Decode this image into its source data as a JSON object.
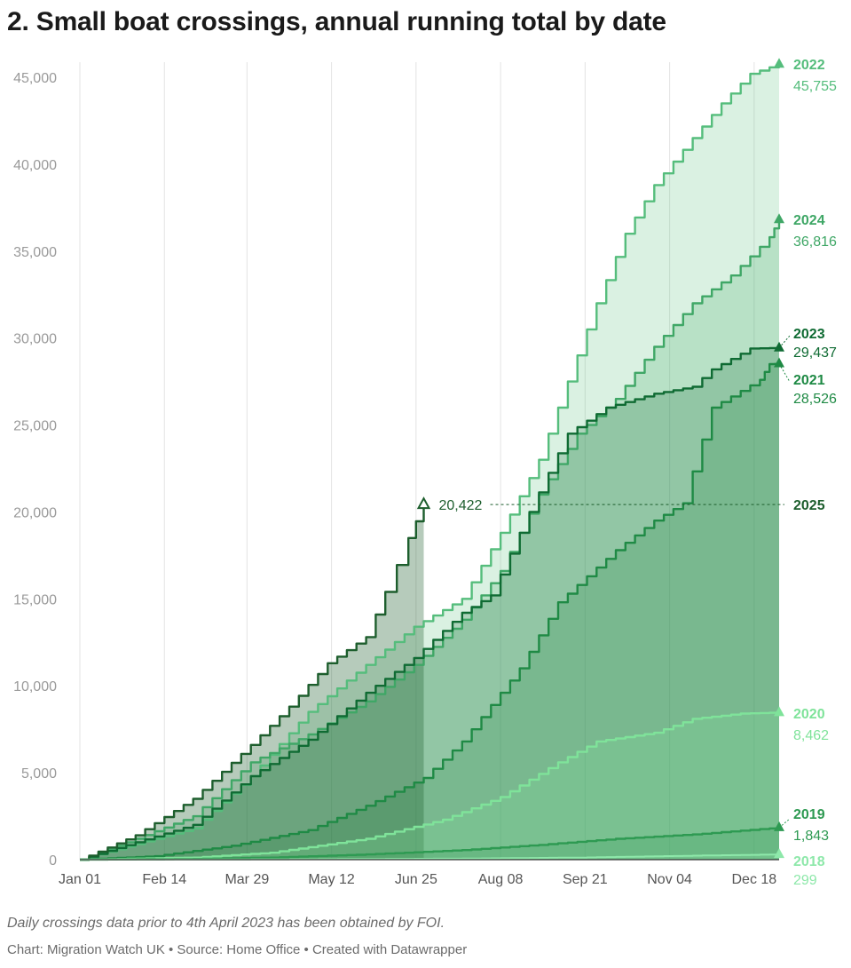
{
  "title": "2. Small boat crossings, annual running total by date",
  "footer": {
    "note": "Daily crossings data prior to 4th April 2023 has been obtained by FOI.",
    "source": "Chart: Migration Watch UK • Source: Home Office • Created with Datawrapper"
  },
  "colors": {
    "y2018": "#8ee8aa",
    "y2019": "#2e9a52",
    "y2020": "#7fe39a",
    "y2021": "#1f8a45",
    "y2022": "#55bd7c",
    "y2023": "#0f6b33",
    "y2024": "#3fa766",
    "y2025": "#1d5e2d"
  },
  "chart_data": {
    "type": "area",
    "title": "2. Small boat crossings, annual running total by date",
    "xlabel": "",
    "ylabel": "",
    "xlim": [
      1,
      365
    ],
    "ylim": [
      0,
      45000
    ],
    "grid": true,
    "x_ticks": [
      {
        "day": 1,
        "label": "Jan 01"
      },
      {
        "day": 45,
        "label": "Feb 14"
      },
      {
        "day": 88,
        "label": "Mar 29"
      },
      {
        "day": 132,
        "label": "May 12"
      },
      {
        "day": 176,
        "label": "Jun 25"
      },
      {
        "day": 220,
        "label": "Aug 08"
      },
      {
        "day": 264,
        "label": "Sep 21"
      },
      {
        "day": 308,
        "label": "Nov 04"
      },
      {
        "day": 352,
        "label": "Dec 18"
      }
    ],
    "y_ticks": [
      {
        "value": 0,
        "label": "0"
      },
      {
        "value": 5000,
        "label": "5,000"
      },
      {
        "value": 10000,
        "label": "10,000"
      },
      {
        "value": 15000,
        "label": "15,000"
      },
      {
        "value": 20000,
        "label": "20,000"
      },
      {
        "value": 25000,
        "label": "25,000"
      },
      {
        "value": 30000,
        "label": "30,000"
      },
      {
        "value": 35000,
        "label": "35,000"
      },
      {
        "value": 40000,
        "label": "40,000"
      },
      {
        "value": 45000,
        "label": "45,000"
      }
    ],
    "series": [
      {
        "name": "2018",
        "final": 299,
        "final_label": "299",
        "color_key": "y2018",
        "points": [
          [
            1,
            0
          ],
          [
            100,
            20
          ],
          [
            200,
            60
          ],
          [
            260,
            120
          ],
          [
            320,
            230
          ],
          [
            365,
            299
          ]
        ]
      },
      {
        "name": "2019",
        "final": 1843,
        "final_label": "1,843",
        "color_key": "y2019",
        "points": [
          [
            1,
            0
          ],
          [
            60,
            40
          ],
          [
            100,
            120
          ],
          [
            150,
            300
          ],
          [
            200,
            550
          ],
          [
            240,
            850
          ],
          [
            280,
            1200
          ],
          [
            320,
            1450
          ],
          [
            365,
            1843
          ]
        ]
      },
      {
        "name": "2020",
        "final": 8462,
        "final_label": "8,462",
        "color_key": "y2020",
        "points": [
          [
            1,
            0
          ],
          [
            60,
            120
          ],
          [
            100,
            400
          ],
          [
            150,
            1200
          ],
          [
            190,
            2300
          ],
          [
            220,
            3600
          ],
          [
            250,
            5600
          ],
          [
            270,
            6800
          ],
          [
            300,
            7300
          ],
          [
            320,
            8100
          ],
          [
            345,
            8400
          ],
          [
            365,
            8462
          ]
        ]
      },
      {
        "name": "2021",
        "final": 28526,
        "final_label": "28,526",
        "color_key": "y2021",
        "points": [
          [
            1,
            0
          ],
          [
            40,
            200
          ],
          [
            80,
            800
          ],
          [
            120,
            1700
          ],
          [
            150,
            3100
          ],
          [
            180,
            4700
          ],
          [
            200,
            6800
          ],
          [
            230,
            11000
          ],
          [
            250,
            14800
          ],
          [
            280,
            17800
          ],
          [
            300,
            19500
          ],
          [
            315,
            20500
          ],
          [
            330,
            26000
          ],
          [
            355,
            27600
          ],
          [
            360,
            28500
          ],
          [
            365,
            28526
          ]
        ]
      },
      {
        "name": "2022",
        "final": 45755,
        "final_label": "45,755",
        "color_key": "y2022",
        "points": [
          [
            1,
            0
          ],
          [
            30,
            900
          ],
          [
            60,
            1800
          ],
          [
            90,
            4800
          ],
          [
            120,
            8500
          ],
          [
            150,
            11200
          ],
          [
            175,
            13400
          ],
          [
            200,
            15000
          ],
          [
            220,
            18800
          ],
          [
            240,
            23000
          ],
          [
            255,
            27500
          ],
          [
            270,
            32000
          ],
          [
            285,
            36000
          ],
          [
            300,
            38800
          ],
          [
            320,
            41500
          ],
          [
            335,
            43500
          ],
          [
            350,
            45200
          ],
          [
            365,
            45755
          ]
        ]
      },
      {
        "name": "2023",
        "final": 29437,
        "final_label": "29,437",
        "color_key": "y2023",
        "points": [
          [
            1,
            0
          ],
          [
            30,
            1000
          ],
          [
            60,
            2000
          ],
          [
            90,
            4800
          ],
          [
            120,
            6900
          ],
          [
            150,
            9600
          ],
          [
            175,
            11600
          ],
          [
            200,
            14200
          ],
          [
            215,
            15200
          ],
          [
            235,
            20000
          ],
          [
            255,
            24500
          ],
          [
            275,
            26000
          ],
          [
            300,
            26800
          ],
          [
            320,
            27200
          ],
          [
            330,
            28200
          ],
          [
            350,
            29400
          ],
          [
            365,
            29437
          ]
        ]
      },
      {
        "name": "2024",
        "final": 36816,
        "final_label": "36,816",
        "color_key": "y2024",
        "points": [
          [
            1,
            0
          ],
          [
            30,
            1200
          ],
          [
            60,
            2500
          ],
          [
            90,
            5600
          ],
          [
            120,
            7200
          ],
          [
            150,
            9100
          ],
          [
            175,
            11200
          ],
          [
            200,
            13800
          ],
          [
            220,
            16600
          ],
          [
            240,
            21000
          ],
          [
            260,
            24500
          ],
          [
            280,
            26500
          ],
          [
            300,
            29500
          ],
          [
            320,
            32000
          ],
          [
            340,
            33600
          ],
          [
            360,
            35800
          ],
          [
            365,
            36816
          ]
        ]
      },
      {
        "name": "2025",
        "final": 20422,
        "final_label": "20,422",
        "color_key": "y2025",
        "points": [
          [
            1,
            0
          ],
          [
            30,
            1400
          ],
          [
            60,
            3500
          ],
          [
            90,
            6600
          ],
          [
            110,
            8800
          ],
          [
            130,
            11300
          ],
          [
            150,
            12800
          ],
          [
            160,
            15400
          ],
          [
            172,
            18500
          ],
          [
            180,
            20422
          ]
        ]
      }
    ]
  }
}
